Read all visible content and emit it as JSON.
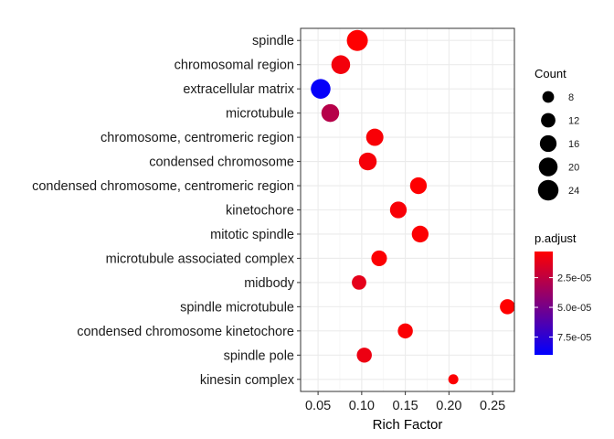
{
  "chart_data": {
    "type": "scatter",
    "title": "",
    "xlabel": "Rich Factor",
    "ylabel": "",
    "xlim": [
      0.03,
      0.275
    ],
    "x_ticks": [
      0.05,
      0.1,
      0.15,
      0.2,
      0.25
    ],
    "x_tick_labels": [
      "0.05",
      "0.10",
      "0.15",
      "0.20",
      "0.25"
    ],
    "grid": true,
    "legend_position": "right",
    "categories": [
      "spindle",
      "chromosomal region",
      "extracellular matrix",
      "microtubule",
      "chromosome, centromeric region",
      "condensed chromosome",
      "condensed chromosome, centromeric region",
      "kinetochore",
      "mitotic spindle",
      "microtubule associated complex",
      "midbody",
      "spindle microtubule",
      "condensed chromosome kinetochore",
      "spindle pole",
      "kinesin complex"
    ],
    "points": [
      {
        "term": "spindle",
        "x": 0.095,
        "count": 25,
        "p_adjust": 3.5e-06
      },
      {
        "term": "chromosomal region",
        "x": 0.076,
        "count": 20,
        "p_adjust": 7e-06
      },
      {
        "term": "extracellular matrix",
        "x": 0.053,
        "count": 22,
        "p_adjust": 8.8e-05
      },
      {
        "term": "microtubule",
        "x": 0.064,
        "count": 18,
        "p_adjust": 2.8e-05
      },
      {
        "term": "chromosome, centromeric region",
        "x": 0.115,
        "count": 17,
        "p_adjust": 5e-06
      },
      {
        "term": "condensed chromosome",
        "x": 0.107,
        "count": 18,
        "p_adjust": 6e-06
      },
      {
        "term": "condensed chromosome, centromeric region",
        "x": 0.165,
        "count": 16,
        "p_adjust": 3.5e-06
      },
      {
        "term": "kinetochore",
        "x": 0.142,
        "count": 16,
        "p_adjust": 5.5e-06
      },
      {
        "term": "mitotic spindle",
        "x": 0.167,
        "count": 16,
        "p_adjust": 4e-06
      },
      {
        "term": "microtubule associated complex",
        "x": 0.12,
        "count": 14,
        "p_adjust": 4e-06
      },
      {
        "term": "midbody",
        "x": 0.097,
        "count": 12,
        "p_adjust": 1.2e-05
      },
      {
        "term": "spindle microtubule",
        "x": 0.267,
        "count": 13,
        "p_adjust": 3e-06
      },
      {
        "term": "condensed chromosome kinetochore",
        "x": 0.15,
        "count": 13,
        "p_adjust": 4.5e-06
      },
      {
        "term": "spindle pole",
        "x": 0.103,
        "count": 13,
        "p_adjust": 9e-06
      },
      {
        "term": "kinesin complex",
        "x": 0.205,
        "count": 6,
        "p_adjust": 4e-06
      }
    ],
    "size_legend": {
      "title": "Count",
      "breaks": [
        8,
        12,
        16,
        20,
        24
      ],
      "labels": [
        "8",
        "12",
        "16",
        "20",
        "24"
      ]
    },
    "color_legend": {
      "title": "p.adjust",
      "range": [
        3e-06,
        9e-05
      ],
      "breaks": [
        2.5e-05,
        5e-05,
        7.5e-05
      ],
      "labels": [
        "2.5e-05",
        "5.0e-05",
        "7.5e-05"
      ],
      "low_color": "#ff0000",
      "high_color": "#0000ff"
    },
    "colors": {
      "panel_border": "#333333",
      "grid_major": "#ebebeb",
      "grid_minor": "#f5f5f5"
    }
  }
}
